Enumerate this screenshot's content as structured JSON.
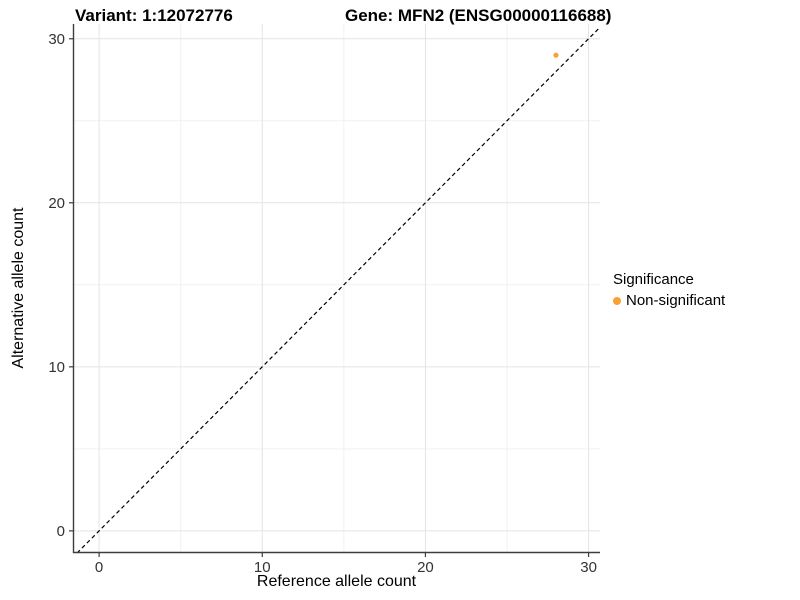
{
  "titles": {
    "left": "Variant: 1:12072776",
    "right": "Gene: MFN2 (ENSG00000116688)"
  },
  "legend": {
    "title": "Significance",
    "items": [
      {
        "label": "Non-significant",
        "color": "#F9A032"
      }
    ]
  },
  "chart_data": {
    "type": "scatter",
    "title": "Variant: 1:12072776  |  Gene: MFN2 (ENSG00000116688)",
    "xlabel": "Reference allele count",
    "ylabel": "Alternative allele count",
    "xlim": [
      -1.6,
      30.7
    ],
    "ylim": [
      -1.35,
      30.9
    ],
    "xticks": [
      0,
      10,
      20,
      30
    ],
    "yticks": [
      0,
      10,
      20,
      30
    ],
    "minor_xticks": [
      5,
      15,
      25
    ],
    "minor_yticks": [
      5,
      15,
      25
    ],
    "grid": true,
    "legend_position": "right",
    "series": [
      {
        "name": "Non-significant",
        "color": "#F9A032",
        "points": [
          {
            "x": 28,
            "y": 29
          }
        ]
      }
    ],
    "reference_line": {
      "type": "identity",
      "slope": 1,
      "intercept": 0,
      "style": "dashed",
      "color": "#000000"
    },
    "style": {
      "major_grid_color": "#e4e4e4",
      "minor_grid_color": "#f1f1f1",
      "axis_line_color": "#3c3c3c",
      "tick_label_color": "#333333",
      "tick_label_size": 15
    }
  }
}
